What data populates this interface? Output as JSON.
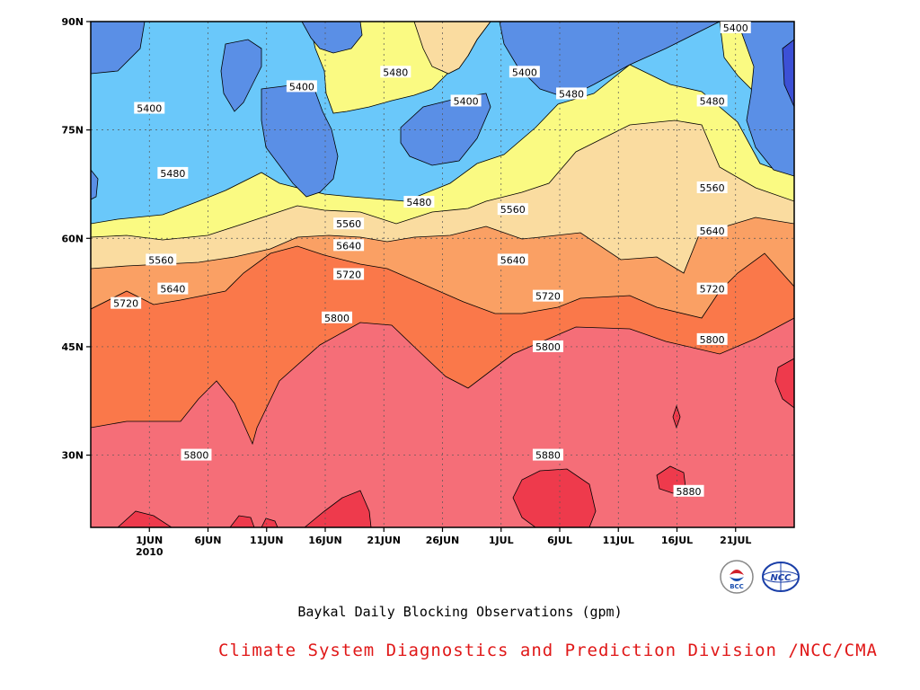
{
  "chart_data": {
    "type": "contour",
    "title": "Baykal Daily Blocking Observations (gpm)",
    "credit": "Climate System Diagnostics and Prediction Division /NCC/CMA",
    "x_axis": {
      "ticks": [
        "1JUN",
        "6JUN",
        "11JUN",
        "16JUN",
        "21JUN",
        "26JUN",
        "1JUL",
        "6JUL",
        "11JUL",
        "16JUL",
        "21JUL"
      ],
      "year_label": "2010",
      "range": [
        "2010-05-27",
        "2010-07-26"
      ]
    },
    "y_axis": {
      "ticks": [
        "30N",
        "45N",
        "60N",
        "75N",
        "90N"
      ],
      "tick_values": [
        30,
        45,
        60,
        75,
        90
      ],
      "range": [
        20,
        90
      ]
    },
    "levels": [
      5400,
      5480,
      5560,
      5640,
      5720,
      5800,
      5880
    ],
    "level_colors": [
      "#5a8fe6",
      "#6ac8fa",
      "#fafa82",
      "#fadca0",
      "#faa064",
      "#fa784a",
      "#f56e78",
      "#ee3a4c"
    ],
    "contour_labels": [
      {
        "value": "5400",
        "day": "2010-06-01",
        "lat": 78
      },
      {
        "value": "5400",
        "day": "2010-06-14",
        "lat": 81
      },
      {
        "value": "5480",
        "day": "2010-06-22",
        "lat": 83
      },
      {
        "value": "5400",
        "day": "2010-06-28",
        "lat": 79
      },
      {
        "value": "5400",
        "day": "2010-07-03",
        "lat": 83
      },
      {
        "value": "5480",
        "day": "2010-07-07",
        "lat": 80
      },
      {
        "value": "5400",
        "day": "2010-07-21",
        "lat": 90
      },
      {
        "value": "5480",
        "day": "2010-07-19",
        "lat": 79
      },
      {
        "value": "5480",
        "day": "2010-06-03",
        "lat": 69
      },
      {
        "value": "5480",
        "day": "2010-06-24",
        "lat": 65
      },
      {
        "value": "5560",
        "day": "2010-07-02",
        "lat": 64
      },
      {
        "value": "5560",
        "day": "2010-07-19",
        "lat": 67
      },
      {
        "value": "5560",
        "day": "2010-06-18",
        "lat": 62
      },
      {
        "value": "5640",
        "day": "2010-06-18",
        "lat": 59
      },
      {
        "value": "5560",
        "day": "2010-06-02",
        "lat": 57
      },
      {
        "value": "5640",
        "day": "2010-06-03",
        "lat": 53
      },
      {
        "value": "5640",
        "day": "2010-07-02",
        "lat": 57
      },
      {
        "value": "5640",
        "day": "2010-07-19",
        "lat": 61
      },
      {
        "value": "5720",
        "day": "2010-06-18",
        "lat": 55
      },
      {
        "value": "5720",
        "day": "2010-05-30",
        "lat": 51
      },
      {
        "value": "5720",
        "day": "2010-07-05",
        "lat": 52
      },
      {
        "value": "5720",
        "day": "2010-07-19",
        "lat": 53
      },
      {
        "value": "5800",
        "day": "2010-06-17",
        "lat": 49
      },
      {
        "value": "5800",
        "day": "2010-07-05",
        "lat": 45
      },
      {
        "value": "5800",
        "day": "2010-07-19",
        "lat": 46
      },
      {
        "value": "5800",
        "day": "2010-06-05",
        "lat": 30
      },
      {
        "value": "5880",
        "day": "2010-07-05",
        "lat": 30
      },
      {
        "value": "5880",
        "day": "2010-07-17",
        "lat": 25
      }
    ]
  },
  "logos": {
    "bcc": {
      "text": "BCC",
      "color": "#1a4fb0",
      "accent": "#d0202a"
    },
    "ncc": {
      "text": "NCC",
      "color": "#1a3fa8"
    }
  }
}
